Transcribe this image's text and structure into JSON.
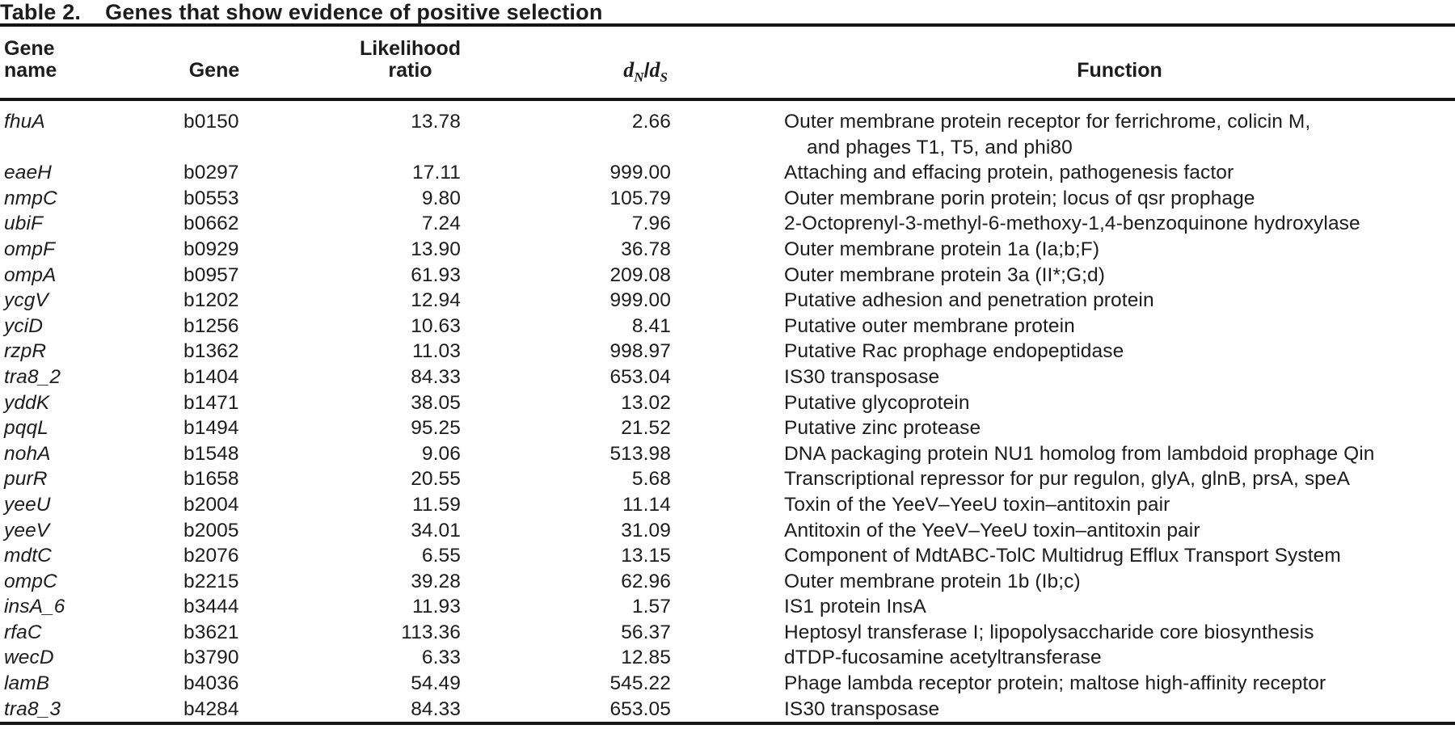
{
  "title": {
    "label": "Table 2.",
    "caption": "Genes that show evidence of positive selection"
  },
  "columns": {
    "gene_name": "Gene\nname",
    "gene": "Gene",
    "likelihood_ratio": "Likelihood\nratio",
    "dnds": {
      "d": "d",
      "sub_n": "N",
      "slash": "/",
      "sub_s": "S"
    },
    "function_label": "Function"
  },
  "rows": [
    {
      "gene_name": "fhuA",
      "gene": "b0150",
      "likelihood_ratio": "13.78",
      "dnds": "2.66",
      "function": "Outer membrane protein receptor for ferrichrome, colicin M,\nand phages T1, T5, and phi80"
    },
    {
      "gene_name": "eaeH",
      "gene": "b0297",
      "likelihood_ratio": "17.11",
      "dnds": "999.00",
      "function": "Attaching and effacing protein, pathogenesis factor"
    },
    {
      "gene_name": "nmpC",
      "gene": "b0553",
      "likelihood_ratio": "9.80",
      "dnds": "105.79",
      "function": "Outer membrane porin protein; locus of qsr prophage"
    },
    {
      "gene_name": "ubiF",
      "gene": "b0662",
      "likelihood_ratio": "7.24",
      "dnds": "7.96",
      "function": "2-Octoprenyl-3-methyl-6-methoxy-1,4-benzoquinone hydroxylase"
    },
    {
      "gene_name": "ompF",
      "gene": "b0929",
      "likelihood_ratio": "13.90",
      "dnds": "36.78",
      "function": "Outer membrane protein 1a (Ia;b;F)"
    },
    {
      "gene_name": "ompA",
      "gene": "b0957",
      "likelihood_ratio": "61.93",
      "dnds": "209.08",
      "function": "Outer membrane protein 3a (II*;G;d)"
    },
    {
      "gene_name": "ycgV",
      "gene": "b1202",
      "likelihood_ratio": "12.94",
      "dnds": "999.00",
      "function": "Putative adhesion and penetration protein"
    },
    {
      "gene_name": "yciD",
      "gene": "b1256",
      "likelihood_ratio": "10.63",
      "dnds": "8.41",
      "function": "Putative outer membrane protein"
    },
    {
      "gene_name": "rzpR",
      "gene": "b1362",
      "likelihood_ratio": "11.03",
      "dnds": "998.97",
      "function": "Putative Rac prophage endopeptidase"
    },
    {
      "gene_name": "tra8_2",
      "gene": "b1404",
      "likelihood_ratio": "84.33",
      "dnds": "653.04",
      "function": "IS30 transposase"
    },
    {
      "gene_name": "yddK",
      "gene": "b1471",
      "likelihood_ratio": "38.05",
      "dnds": "13.02",
      "function": "Putative glycoprotein"
    },
    {
      "gene_name": "pqqL",
      "gene": "b1494",
      "likelihood_ratio": "95.25",
      "dnds": "21.52",
      "function": "Putative zinc protease"
    },
    {
      "gene_name": "nohA",
      "gene": "b1548",
      "likelihood_ratio": "9.06",
      "dnds": "513.98",
      "function": "DNA packaging protein NU1 homolog from lambdoid prophage Qin"
    },
    {
      "gene_name": "purR",
      "gene": "b1658",
      "likelihood_ratio": "20.55",
      "dnds": "5.68",
      "function": "Transcriptional repressor for pur regulon, glyA, glnB, prsA, speA"
    },
    {
      "gene_name": "yeeU",
      "gene": "b2004",
      "likelihood_ratio": "11.59",
      "dnds": "11.14",
      "function": "Toxin of the YeeV–YeeU toxin–antitoxin pair"
    },
    {
      "gene_name": "yeeV",
      "gene": "b2005",
      "likelihood_ratio": "34.01",
      "dnds": "31.09",
      "function": "Antitoxin of the YeeV–YeeU toxin–antitoxin pair"
    },
    {
      "gene_name": "mdtC",
      "gene": "b2076",
      "likelihood_ratio": "6.55",
      "dnds": "13.15",
      "function": "Component of MdtABC-TolC Multidrug Efflux Transport System"
    },
    {
      "gene_name": "ompC",
      "gene": "b2215",
      "likelihood_ratio": "39.28",
      "dnds": "62.96",
      "function": "Outer membrane protein 1b (Ib;c)"
    },
    {
      "gene_name": "insA_6",
      "gene": "b3444",
      "likelihood_ratio": "11.93",
      "dnds": "1.57",
      "function": "IS1 protein InsA"
    },
    {
      "gene_name": "rfaC",
      "gene": "b3621",
      "likelihood_ratio": "113.36",
      "dnds": "56.37",
      "function": "Heptosyl transferase I; lipopolysaccharide core biosynthesis"
    },
    {
      "gene_name": "wecD",
      "gene": "b3790",
      "likelihood_ratio": "6.33",
      "dnds": "12.85",
      "function": "dTDP-fucosamine acetyltransferase"
    },
    {
      "gene_name": "lamB",
      "gene": "b4036",
      "likelihood_ratio": "54.49",
      "dnds": "545.22",
      "function": "Phage lambda receptor protein; maltose high-affinity receptor"
    },
    {
      "gene_name": "tra8_3",
      "gene": "b4284",
      "likelihood_ratio": "84.33",
      "dnds": "653.05",
      "function": "IS30 transposase"
    }
  ]
}
